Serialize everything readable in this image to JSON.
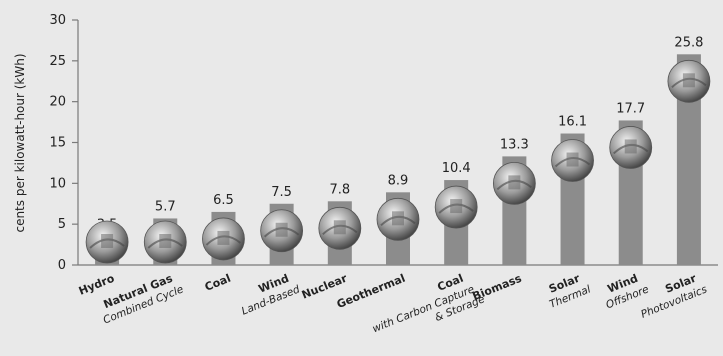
{
  "chart_data": {
    "type": "bar",
    "ylabel": "cents per kilowatt-hour (kWh)",
    "ylim": [
      0,
      30
    ],
    "yticks": [
      0,
      5,
      10,
      15,
      20,
      25,
      30
    ],
    "grid": false,
    "categories": [
      {
        "name": "Hydro",
        "sub": ""
      },
      {
        "name": "Natural Gas",
        "sub": "Combined Cycle"
      },
      {
        "name": "Coal",
        "sub": ""
      },
      {
        "name": "Wind",
        "sub": "Land-Based"
      },
      {
        "name": "Nuclear",
        "sub": ""
      },
      {
        "name": "Geothermal",
        "sub": ""
      },
      {
        "name": "Coal",
        "sub": "with Carbon Capture & Storage"
      },
      {
        "name": "Biomass",
        "sub": ""
      },
      {
        "name": "Solar",
        "sub": "Thermal"
      },
      {
        "name": "Wind",
        "sub": "Offshore"
      },
      {
        "name": "Solar",
        "sub": "Photovoltaics"
      }
    ],
    "values": [
      3.5,
      5.7,
      6.5,
      7.5,
      7.8,
      8.9,
      10.4,
      13.3,
      16.1,
      17.7,
      25.8
    ],
    "value_labels": [
      "3.5",
      "5.7",
      "6.5",
      "7.5",
      "7.8",
      "8.9",
      "10.4",
      "13.3",
      "16.1",
      "17.7",
      "25.8"
    ],
    "icons": [
      "hydro-dam-icon",
      "gas-plant-icon",
      "coal-plant-icon",
      "wind-turbine-icon",
      "nuclear-plant-icon",
      "geothermal-icon",
      "ccs-plant-icon",
      "biomass-icon",
      "solar-thermal-icon",
      "offshore-wind-icon",
      "solar-panel-icon"
    ],
    "colors": {
      "bar": "#8c8c8c",
      "axis": "#7a7a7a",
      "text": "#222222",
      "background": "#e9e9e9"
    }
  }
}
